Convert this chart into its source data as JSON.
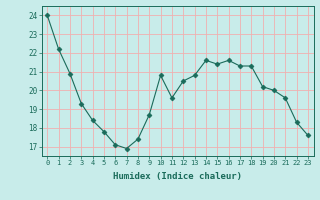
{
  "x": [
    0,
    1,
    2,
    3,
    4,
    5,
    6,
    7,
    8,
    9,
    10,
    11,
    12,
    13,
    14,
    15,
    16,
    17,
    18,
    19,
    20,
    21,
    22,
    23
  ],
  "y": [
    24.0,
    22.2,
    20.9,
    19.3,
    18.4,
    17.8,
    17.1,
    16.9,
    17.4,
    18.7,
    20.8,
    19.6,
    20.5,
    20.8,
    21.6,
    21.4,
    21.6,
    21.3,
    21.3,
    20.2,
    20.0,
    19.6,
    18.3,
    17.6
  ],
  "line_color": "#1a6b5a",
  "marker": "D",
  "marker_size": 2.5,
  "bg_color": "#c8ecea",
  "grid_color": "#f0b0b0",
  "tick_color": "#1a6b5a",
  "label_color": "#1a6b5a",
  "xlabel": "Humidex (Indice chaleur)",
  "ylim": [
    16.5,
    24.5
  ],
  "xlim": [
    -0.5,
    23.5
  ],
  "yticks": [
    17,
    18,
    19,
    20,
    21,
    22,
    23,
    24
  ],
  "xticks": [
    0,
    1,
    2,
    3,
    4,
    5,
    6,
    7,
    8,
    9,
    10,
    11,
    12,
    13,
    14,
    15,
    16,
    17,
    18,
    19,
    20,
    21,
    22,
    23
  ]
}
